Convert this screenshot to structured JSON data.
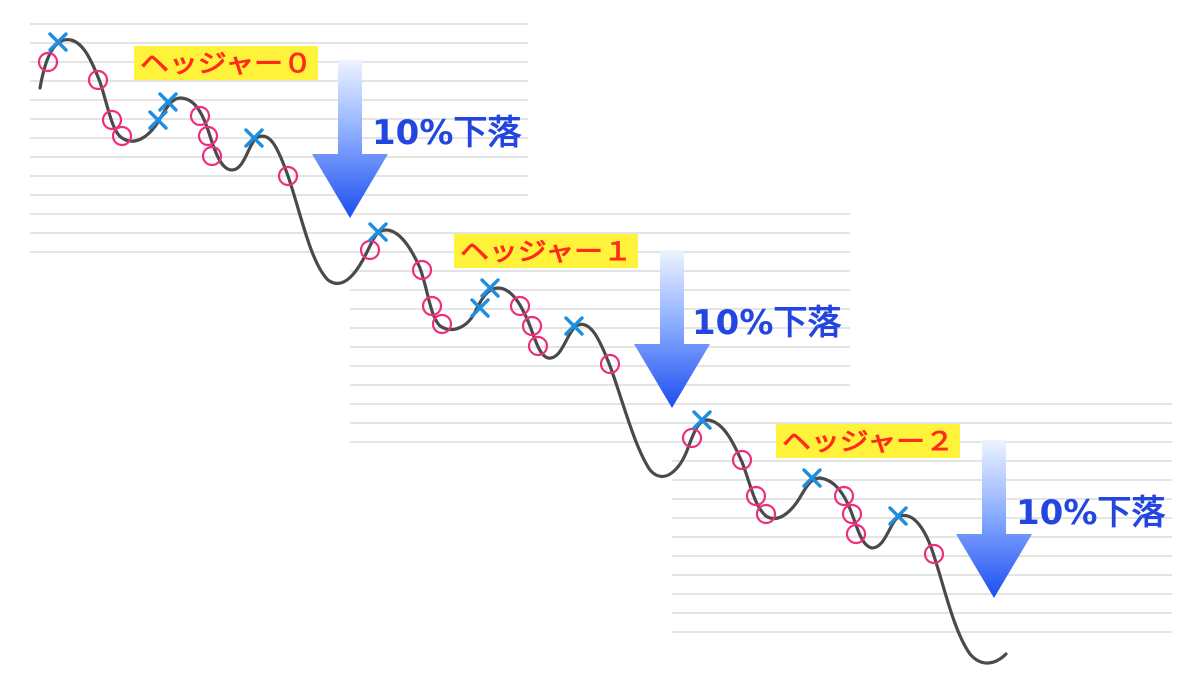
{
  "segments": [
    {
      "hedger_label": "ヘッジャー０",
      "drop_label": "10%下落"
    },
    {
      "hedger_label": "ヘッジャー１",
      "drop_label": "10%下落"
    },
    {
      "hedger_label": "ヘッジャー２",
      "drop_label": "10%下落"
    }
  ],
  "colors": {
    "label_bg": "#fff23a",
    "label_text": "#ff2a1a",
    "drop_text": "#2346e0",
    "arrow_top": "#e8efff",
    "arrow_bottom": "#1e50f0",
    "curve": "#4a4a4a",
    "grid": "#c8c8c8",
    "circle_marker": "#ee2e7c",
    "cross_marker": "#1e8ee0"
  },
  "markers": {
    "circle": "buy-marker",
    "cross": "sell-marker"
  }
}
